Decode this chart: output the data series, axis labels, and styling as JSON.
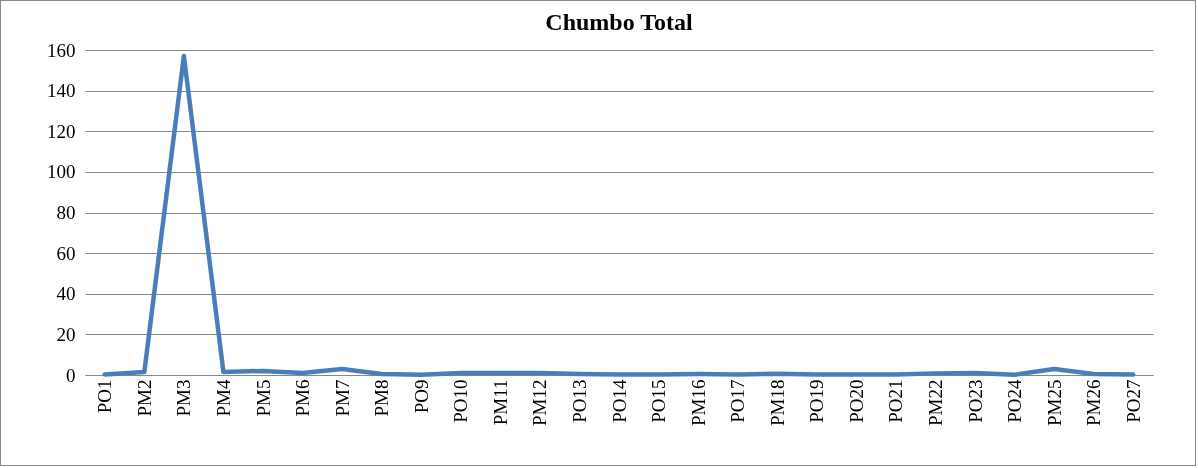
{
  "chart_data": {
    "type": "line",
    "title": "Chumbo Total",
    "categories": [
      "PO1",
      "PM2",
      "PM3",
      "PM4",
      "PM5",
      "PM6",
      "PM7",
      "PM8",
      "PO9",
      "PO10",
      "PM11",
      "PM12",
      "PO13",
      "PO14",
      "PO15",
      "PM16",
      "PO17",
      "PM18",
      "PO19",
      "PO20",
      "PO21",
      "PM22",
      "PO23",
      "PO24",
      "PM25",
      "PM26",
      "PO27"
    ],
    "series": [
      {
        "color": "#4a7ebb",
        "values": [
          0.3,
          1.5,
          157,
          1.5,
          2,
          1,
          3,
          0.5,
          0.1,
          1,
          1,
          1,
          0.5,
          0.2,
          0.3,
          0.5,
          0.3,
          0.6,
          0.2,
          0.2,
          0.2,
          0.8,
          1,
          0.1,
          3,
          0.5,
          0.2
        ]
      }
    ],
    "ylim": [
      0,
      160
    ],
    "yticks": [
      0,
      20,
      40,
      60,
      80,
      100,
      120,
      140,
      160
    ],
    "grid": "y",
    "marker": "none",
    "line_style": "solid"
  }
}
